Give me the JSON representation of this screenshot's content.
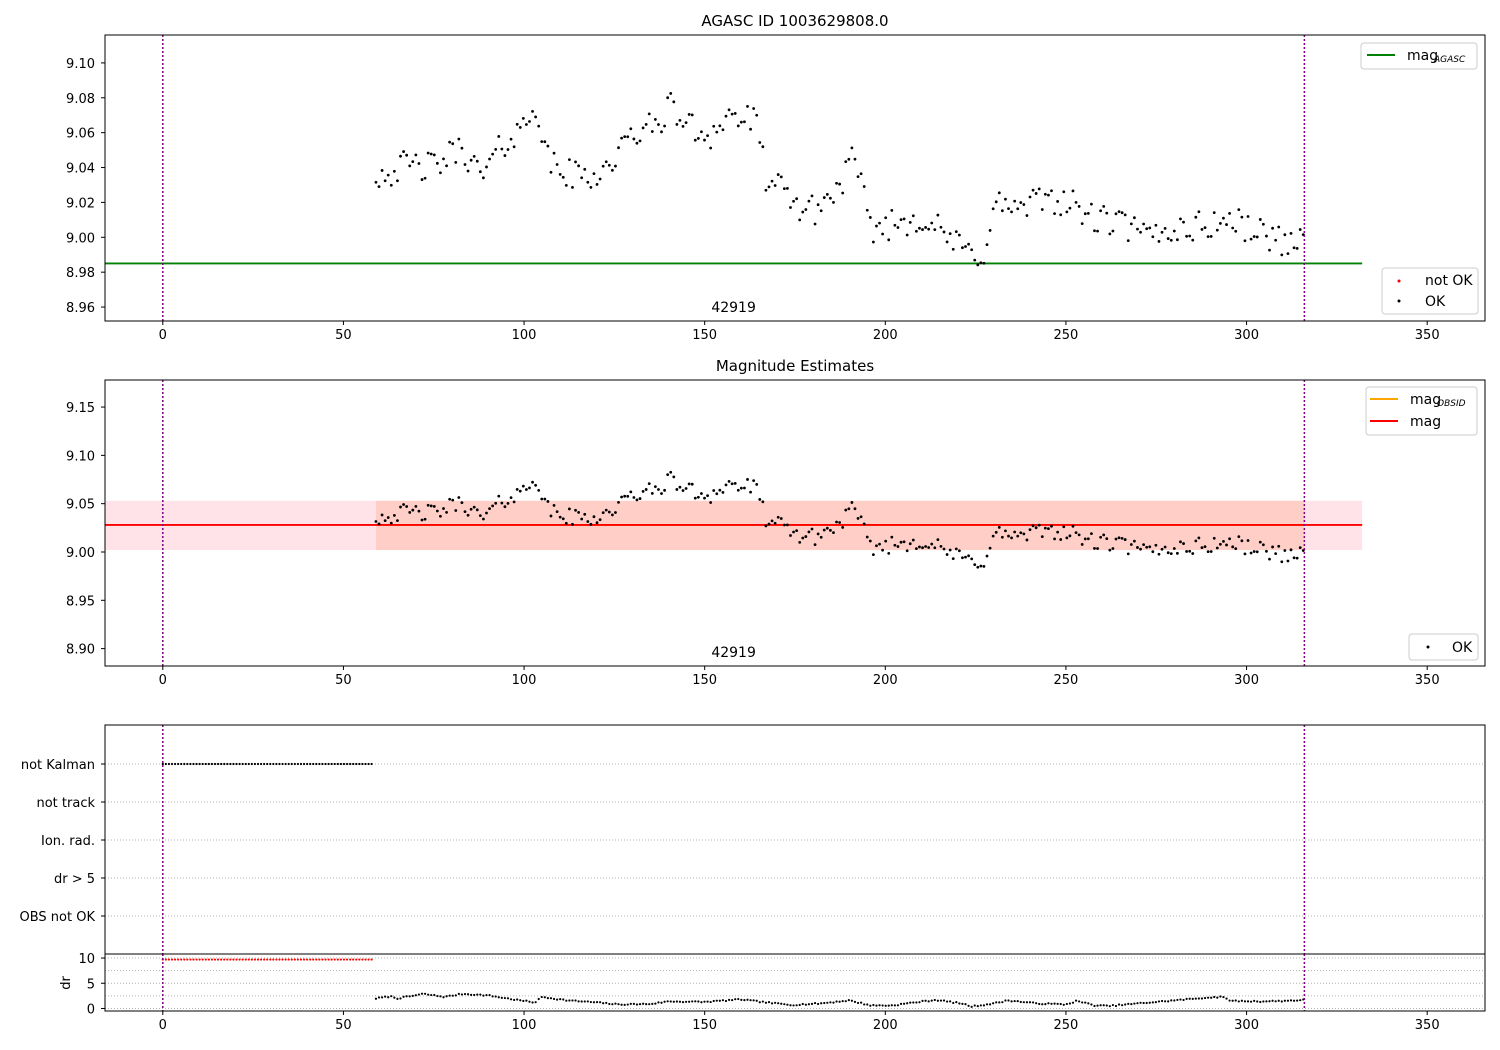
{
  "chart_data": [
    {
      "id": "panel1",
      "type": "scatter",
      "title": "AGASC ID 1003629808.0",
      "xlim": [
        -16,
        366
      ],
      "ylim": [
        8.952,
        9.116
      ],
      "xticks": [
        0,
        50,
        100,
        150,
        200,
        250,
        300,
        350
      ],
      "yticks": [
        8.96,
        8.98,
        9.0,
        9.02,
        9.04,
        9.06,
        9.08,
        9.1
      ],
      "yticklabels": [
        "8.96",
        "8.98",
        "9.00",
        "9.02",
        "9.04",
        "9.06",
        "9.08",
        "9.10"
      ],
      "hlines": [
        {
          "name": "mag_AGASC",
          "y": 8.985,
          "x": [
            -16,
            332
          ],
          "color": "#008000"
        }
      ],
      "vlines": [
        0,
        316
      ],
      "annotation": "42919",
      "annotation_x": 158,
      "legend_top": [
        {
          "label": "mag",
          "sub": "AGASC",
          "color": "#008000"
        }
      ],
      "legend_bottom": [
        {
          "label": "not OK",
          "color": "#ff0000"
        },
        {
          "label": "OK",
          "color": "#000000"
        }
      ],
      "segments": [
        [
          59,
          9.036
        ],
        [
          68,
          9.041
        ],
        [
          75,
          9.04
        ],
        [
          83,
          9.052
        ],
        [
          88,
          9.034
        ],
        [
          95,
          9.055
        ],
        [
          100,
          9.063
        ],
        [
          103,
          9.08
        ],
        [
          106,
          9.045
        ],
        [
          112,
          9.036
        ],
        [
          118,
          9.035
        ],
        [
          123,
          9.04
        ],
        [
          127,
          9.05
        ],
        [
          132,
          9.062
        ],
        [
          136,
          9.062
        ],
        [
          140,
          9.075
        ],
        [
          148,
          9.06
        ],
        [
          152,
          9.06
        ],
        [
          157,
          9.07
        ],
        [
          164,
          9.066
        ],
        [
          167,
          9.035
        ],
        [
          174,
          9.02
        ],
        [
          180,
          9.015
        ],
        [
          186,
          9.025
        ],
        [
          191,
          9.045
        ],
        [
          193,
          9.03
        ],
        [
          196,
          9.005
        ],
        [
          203,
          9.008
        ],
        [
          210,
          9.012
        ],
        [
          217,
          9.0
        ],
        [
          222,
          8.992
        ],
        [
          227,
          8.99
        ],
        [
          231,
          9.02
        ],
        [
          238,
          9.015
        ],
        [
          245,
          9.024
        ],
        [
          252,
          9.018
        ],
        [
          258,
          9.01
        ],
        [
          265,
          9.008
        ],
        [
          272,
          9.0
        ],
        [
          280,
          9.005
        ],
        [
          287,
          9.006
        ],
        [
          295,
          9.01
        ],
        [
          302,
          9.004
        ],
        [
          310,
          8.998
        ],
        [
          316,
          8.998
        ]
      ]
    },
    {
      "id": "panel2",
      "type": "scatter",
      "title": "Magnitude Estimates",
      "xlim": [
        -16,
        366
      ],
      "ylim": [
        8.882,
        9.178
      ],
      "xticks": [
        0,
        50,
        100,
        150,
        200,
        250,
        300,
        350
      ],
      "yticks": [
        8.9,
        8.95,
        9.0,
        9.05,
        9.1,
        9.15
      ],
      "yticklabels": [
        "8.90",
        "8.95",
        "9.00",
        "9.05",
        "9.10",
        "9.15"
      ],
      "band_mag": {
        "y": 9.028,
        "low": 9.002,
        "high": 9.053,
        "x": [
          -16,
          332
        ],
        "color": "#ff0000",
        "fill": "#ffc0cb"
      },
      "band_obsid": {
        "y": 9.028,
        "low": 9.002,
        "high": 9.053,
        "x": [
          59,
          316
        ],
        "color": "#ffa500",
        "fill": "#ffa07a"
      },
      "vlines": [
        0,
        316
      ],
      "annotation": "42919",
      "annotation_x": 158,
      "legend_top": [
        {
          "label": "mag",
          "sub": "OBSID",
          "color": "#ffa500"
        },
        {
          "label": "mag",
          "sub": "",
          "color": "#ff0000"
        }
      ],
      "legend_bottom": [
        {
          "label": "OK",
          "color": "#000000"
        }
      ]
    },
    {
      "id": "panel3",
      "type": "scatter",
      "categories": [
        "not Kalman",
        "not track",
        "Ion. rad.",
        "dr > 5",
        "OBS not OK"
      ],
      "xlim": [
        -16,
        366
      ],
      "flag_not_kalman_x": [
        0,
        58
      ],
      "vlines": [
        0,
        316
      ]
    },
    {
      "id": "panel4",
      "type": "scatter",
      "ylabel": "dr",
      "xlim": [
        -16,
        366
      ],
      "ylim": [
        -0.5,
        10.8
      ],
      "xticks": [
        0,
        50,
        100,
        150,
        200,
        250,
        300,
        350
      ],
      "yticks": [
        0,
        5,
        10
      ],
      "yticklabels": [
        "0",
        "5",
        "10"
      ],
      "gridlines_y": [
        0,
        2.5,
        5,
        7.5,
        10
      ],
      "not_ok_x": [
        0,
        58
      ],
      "not_ok_y": 9.7,
      "vlines": [
        0,
        316
      ],
      "dr_segments": [
        [
          59,
          2.0
        ],
        [
          63,
          2.4
        ],
        [
          65,
          2.0
        ],
        [
          70,
          2.6
        ],
        [
          72,
          2.9
        ],
        [
          78,
          2.3
        ],
        [
          83,
          2.9
        ],
        [
          90,
          2.6
        ],
        [
          97,
          1.8
        ],
        [
          103,
          1.2
        ],
        [
          105,
          2.3
        ],
        [
          112,
          1.6
        ],
        [
          120,
          1.2
        ],
        [
          126,
          0.8
        ],
        [
          135,
          0.9
        ],
        [
          140,
          1.4
        ],
        [
          150,
          1.3
        ],
        [
          160,
          1.8
        ],
        [
          167,
          1.2
        ],
        [
          174,
          0.7
        ],
        [
          182,
          1.0
        ],
        [
          190,
          1.6
        ],
        [
          196,
          0.6
        ],
        [
          202,
          0.6
        ],
        [
          208,
          1.2
        ],
        [
          214,
          1.7
        ],
        [
          221,
          1.0
        ],
        [
          224,
          0.4
        ],
        [
          230,
          1.0
        ],
        [
          234,
          1.6
        ],
        [
          242,
          1.0
        ],
        [
          250,
          0.8
        ],
        [
          253,
          1.5
        ],
        [
          258,
          0.6
        ],
        [
          262,
          0.5
        ],
        [
          270,
          1.0
        ],
        [
          280,
          1.6
        ],
        [
          288,
          2.1
        ],
        [
          293,
          2.3
        ],
        [
          296,
          1.5
        ],
        [
          304,
          1.4
        ],
        [
          310,
          1.5
        ],
        [
          316,
          1.7
        ]
      ]
    }
  ]
}
